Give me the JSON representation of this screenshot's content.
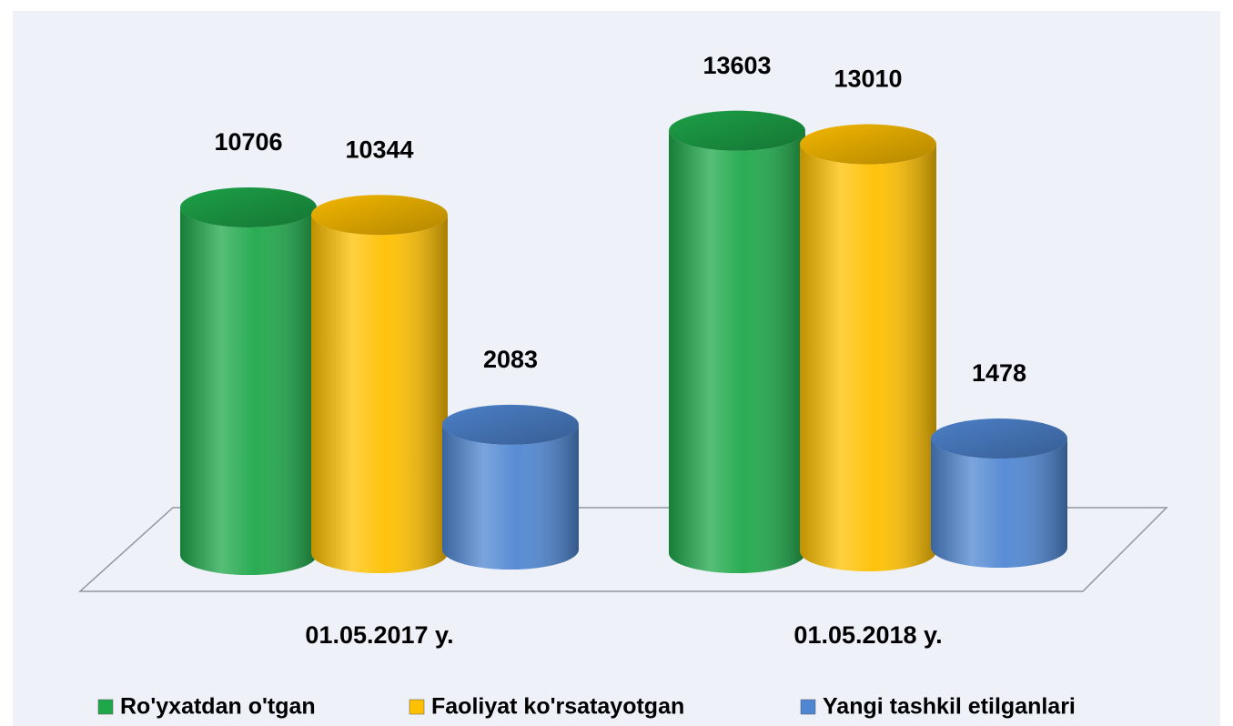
{
  "chart_data": {
    "type": "bar3d",
    "categories": [
      "01.05.2017 y.",
      "01.05.2018 y."
    ],
    "series": [
      {
        "name": "Ro'yxatdan o'tgan",
        "color": "#1ea84a",
        "values": [
          10706,
          13603
        ]
      },
      {
        "name": "Faoliyat ko'rsatayotgan",
        "color": "#ffc000",
        "values": [
          10344,
          13010
        ]
      },
      {
        "name": "Yangi tashkil etilganlari",
        "color": "#4f86d2",
        "values": [
          2083,
          1478
        ]
      }
    ]
  }
}
